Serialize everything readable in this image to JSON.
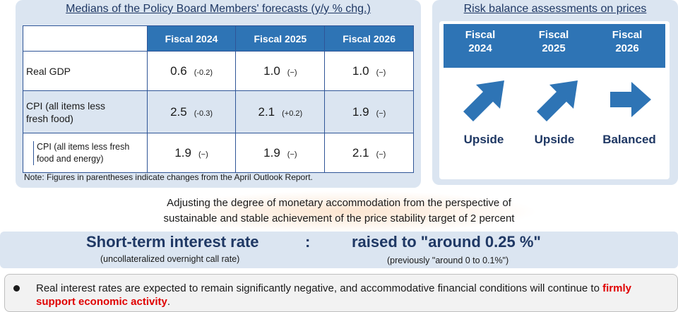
{
  "forecasts": {
    "title": "Medians of the Policy Board Members' forecasts (y/y % chg.)",
    "columns": [
      "Fiscal 2024",
      "Fiscal 2025",
      "Fiscal 2026"
    ],
    "rows": [
      {
        "label": "Real GDP",
        "cells": [
          {
            "value": "0.6",
            "change": "(-0.2)"
          },
          {
            "value": "1.0",
            "change": "(−)"
          },
          {
            "value": "1.0",
            "change": "(−)"
          }
        ]
      },
      {
        "label": "CPI (all items less fresh food)",
        "cells": [
          {
            "value": "2.5",
            "change": "(-0.3)"
          },
          {
            "value": "2.1",
            "change": "(+0.2)"
          },
          {
            "value": "1.9",
            "change": "(−)"
          }
        ]
      },
      {
        "label": "CPI (all items less fresh food and energy)",
        "cells": [
          {
            "value": "1.9",
            "change": "(−)"
          },
          {
            "value": "1.9",
            "change": "(−)"
          },
          {
            "value": "2.1",
            "change": "(−)"
          }
        ]
      }
    ],
    "note": "Note: Figures in parentheses indicate changes from the April Outlook Report."
  },
  "risk": {
    "title": "Risk balance assessments on prices",
    "columns": [
      {
        "line1": "Fiscal",
        "line2": "2024",
        "assessment": "Upside",
        "arrow": "arrow-up-right-icon"
      },
      {
        "line1": "Fiscal",
        "line2": "2025",
        "assessment": "Upside",
        "arrow": "arrow-up-right-icon"
      },
      {
        "line1": "Fiscal",
        "line2": "2026",
        "assessment": "Balanced",
        "arrow": "arrow-right-icon"
      }
    ]
  },
  "policy": {
    "line1": "Adjusting the degree of monetary accommodation from the perspective of",
    "line2": "sustainable and stable achievement of the price stability target of 2 percent"
  },
  "rate": {
    "label": "Short-term interest rate",
    "colon": ":",
    "value": "raised to \"around 0.25 %\"",
    "sub": "(uncollateralized overnight call rate)",
    "previous": "(previously \"around 0 to 0.1%\")"
  },
  "bullet": {
    "text_before": "Real interest rates are expected to remain significantly negative, and accommodative financial conditions will continue to ",
    "highlight": "firmly support economic activity",
    "text_after": "."
  },
  "colors": {
    "accent_blue": "#2e74b5",
    "panel_bg": "#dbe5f1",
    "title_navy": "#1f3864",
    "highlight_red": "#e00000"
  }
}
